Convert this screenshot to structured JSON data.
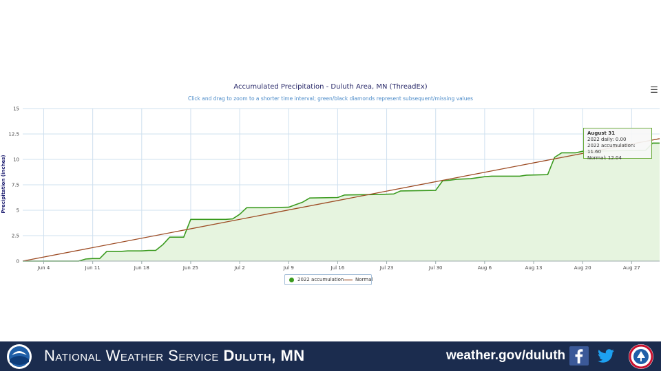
{
  "header": {
    "title": "Accumulated Precipitation - Duluth Area, MN (ThreadEx)",
    "subtitle": "Click and drag to zoom to a shorter time interval; green/black diamonds represent subsequent/missing values",
    "menu_icon": "hamburger-menu-icon"
  },
  "chart_data": {
    "type": "line",
    "title": "Accumulated Precipitation - Duluth Area, MN (ThreadEx)",
    "subtitle": "Click and drag to zoom to a shorter time interval; green/black diamonds represent subsequent/missing values",
    "xlabel": "",
    "ylabel": "Precipitation (inches)",
    "xlim": [
      "2022-06-01",
      "2022-08-31"
    ],
    "ylim": [
      0,
      15
    ],
    "y_ticks": [
      "0",
      "2.5",
      "5",
      "7.5",
      "10",
      "12.5",
      "15"
    ],
    "x_ticks": [
      {
        "date": "2022-06-04",
        "label": "Jun 4"
      },
      {
        "date": "2022-06-11",
        "label": "Jun 11"
      },
      {
        "date": "2022-06-18",
        "label": "Jun 18"
      },
      {
        "date": "2022-06-25",
        "label": "Jun 25"
      },
      {
        "date": "2022-07-02",
        "label": "Jul 2"
      },
      {
        "date": "2022-07-09",
        "label": "Jul 9"
      },
      {
        "date": "2022-07-16",
        "label": "Jul 16"
      },
      {
        "date": "2022-07-23",
        "label": "Jul 23"
      },
      {
        "date": "2022-07-30",
        "label": "Jul 30"
      },
      {
        "date": "2022-08-06",
        "label": "Aug 6"
      },
      {
        "date": "2022-08-13",
        "label": "Aug 13"
      },
      {
        "date": "2022-08-20",
        "label": "Aug 20"
      },
      {
        "date": "2022-08-27",
        "label": "Aug 27"
      }
    ],
    "grid": true,
    "legend_position": "bottom-center",
    "series": [
      {
        "name": "2022 accumulation",
        "color": "#3a9a1e",
        "fill": "#e6f4df",
        "points": [
          [
            "2022-06-01",
            0.0
          ],
          [
            "2022-06-09",
            0.0
          ],
          [
            "2022-06-10",
            0.2
          ],
          [
            "2022-06-11",
            0.25
          ],
          [
            "2022-06-12",
            0.25
          ],
          [
            "2022-06-13",
            0.95
          ],
          [
            "2022-06-15",
            0.95
          ],
          [
            "2022-06-16",
            1.0
          ],
          [
            "2022-06-18",
            1.0
          ],
          [
            "2022-06-19",
            1.05
          ],
          [
            "2022-06-20",
            1.05
          ],
          [
            "2022-06-21",
            1.6
          ],
          [
            "2022-06-22",
            2.35
          ],
          [
            "2022-06-24",
            2.35
          ],
          [
            "2022-06-25",
            4.1
          ],
          [
            "2022-06-30",
            4.1
          ],
          [
            "2022-07-01",
            4.15
          ],
          [
            "2022-07-02",
            4.6
          ],
          [
            "2022-07-03",
            5.25
          ],
          [
            "2022-07-06",
            5.25
          ],
          [
            "2022-07-09",
            5.3
          ],
          [
            "2022-07-10",
            5.55
          ],
          [
            "2022-07-11",
            5.8
          ],
          [
            "2022-07-12",
            6.2
          ],
          [
            "2022-07-16",
            6.25
          ],
          [
            "2022-07-17",
            6.5
          ],
          [
            "2022-07-22",
            6.55
          ],
          [
            "2022-07-24",
            6.6
          ],
          [
            "2022-07-25",
            6.9
          ],
          [
            "2022-07-30",
            6.95
          ],
          [
            "2022-07-31",
            7.9
          ],
          [
            "2022-08-01",
            7.95
          ],
          [
            "2022-08-02",
            8.05
          ],
          [
            "2022-08-04",
            8.1
          ],
          [
            "2022-08-06",
            8.3
          ],
          [
            "2022-08-07",
            8.35
          ],
          [
            "2022-08-11",
            8.35
          ],
          [
            "2022-08-12",
            8.45
          ],
          [
            "2022-08-15",
            8.5
          ],
          [
            "2022-08-16",
            10.2
          ],
          [
            "2022-08-17",
            10.65
          ],
          [
            "2022-08-19",
            10.65
          ],
          [
            "2022-08-20",
            10.8
          ],
          [
            "2022-08-29",
            10.9
          ],
          [
            "2022-08-30",
            11.6
          ],
          [
            "2022-08-31",
            11.6
          ]
        ]
      },
      {
        "name": "Normal",
        "color": "#9c4a22",
        "points": [
          [
            "2022-06-01",
            0.0
          ],
          [
            "2022-08-31",
            12.04
          ]
        ]
      }
    ],
    "tooltip": {
      "date": "August 31",
      "daily": "2022 daily: 0.00",
      "accumulation": "2022 accumulation: 11.60",
      "normal": "Normal: 12.04"
    }
  },
  "footer": {
    "title_regular": "National Weather Service ",
    "title_bold": "Duluth, MN",
    "url": "weather.gov/duluth",
    "icons": [
      "noaa-logo",
      "facebook-icon",
      "twitter-icon",
      "nws-logo"
    ],
    "background": "#1b2c4e"
  }
}
